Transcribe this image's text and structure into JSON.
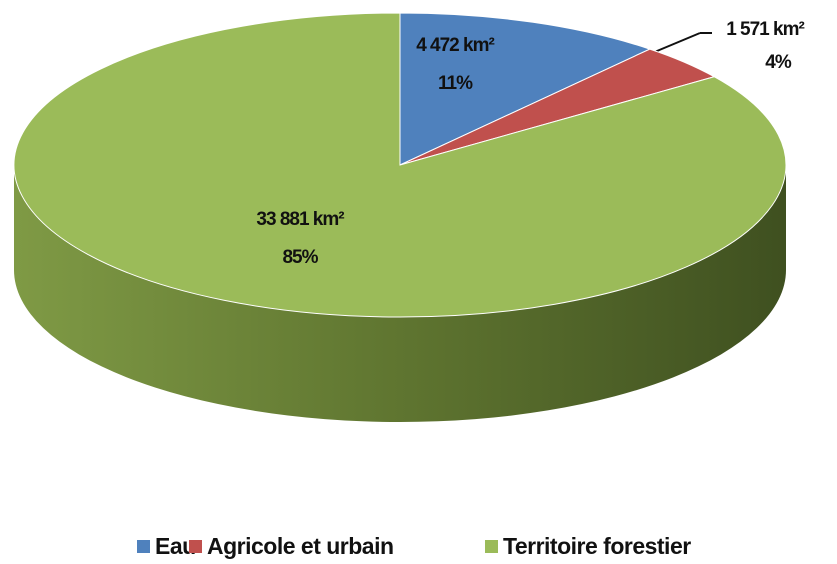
{
  "chart_data": {
    "type": "pie3d",
    "categories": [
      "Eau",
      "Agricole et urbain",
      "Territoire forestier"
    ],
    "values": [
      4472,
      1571,
      33881
    ],
    "value_labels": [
      "4 472 km²",
      "1 571 km²",
      "33 881 km²"
    ],
    "percents": [
      11,
      4,
      85
    ],
    "percent_labels": [
      "11%",
      "4%",
      "85%"
    ],
    "colors": [
      "#4f81bd",
      "#c0504d",
      "#9bbb59"
    ],
    "legend": "bottom"
  }
}
